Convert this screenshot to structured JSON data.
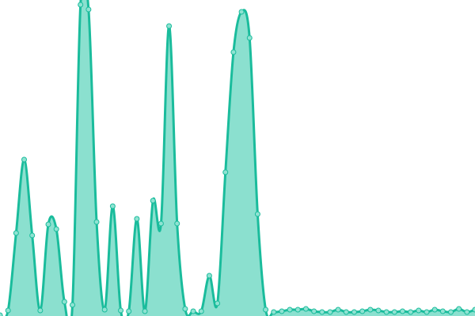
{
  "chart_data": {
    "type": "area",
    "title": "",
    "xlabel": "",
    "ylabel": "",
    "grid": false,
    "axes_visible": false,
    "legend": "none",
    "ylim": [
      0,
      400
    ],
    "x": [
      0,
      1,
      2,
      3,
      4,
      5,
      6,
      7,
      8,
      9,
      10,
      11,
      12,
      13,
      14,
      15,
      16,
      17,
      18,
      19,
      20,
      21,
      22,
      23,
      24,
      25,
      26,
      27,
      28,
      29,
      30,
      31,
      32,
      33,
      34,
      35,
      36,
      37,
      38,
      39,
      40,
      41,
      42,
      43,
      44,
      45,
      46,
      47,
      48,
      49,
      50,
      51,
      52,
      53,
      54,
      55,
      56,
      57,
      58,
      59
    ],
    "series": [
      {
        "values": [
          1,
          7,
          105,
          198,
          102,
          7,
          116,
          110,
          18,
          14,
          394,
          388,
          119,
          8,
          139,
          7,
          6,
          123,
          6,
          146,
          117,
          367,
          117,
          9,
          6,
          6,
          51,
          16,
          182,
          334,
          385,
          352,
          129,
          8,
          5,
          6,
          8,
          8,
          9,
          6,
          5,
          5,
          8,
          5,
          5,
          6,
          8,
          7,
          5,
          5,
          6,
          5,
          7,
          5,
          8,
          6,
          5,
          9,
          5,
          8
        ],
        "line_color": "#1abc9c",
        "fill_color": "#8be0cf",
        "marker_fill": "#8fe3d2"
      }
    ]
  }
}
